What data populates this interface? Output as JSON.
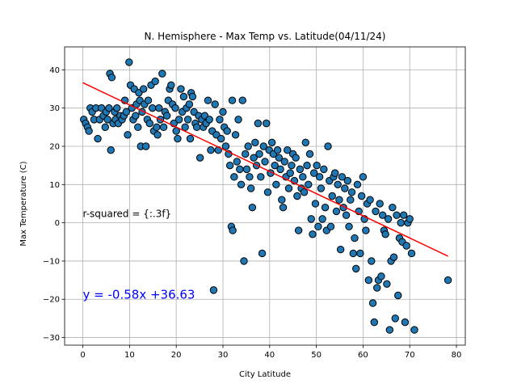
{
  "chart_data": {
    "type": "scatter",
    "title": "N. Hemisphere - Max Temp vs. Latitude(04/11/24)",
    "xlabel": "City Latitude",
    "ylabel": "Max Temperature (C)",
    "xlim": [
      -3.9,
      81.9
    ],
    "ylim": [
      -32,
      46
    ],
    "xticks": [
      0,
      10,
      20,
      30,
      40,
      50,
      60,
      70,
      80
    ],
    "yticks": [
      -30,
      -20,
      -10,
      0,
      10,
      20,
      30,
      40
    ],
    "grid": true,
    "colors": {
      "marker_fill": "#1f77b4",
      "marker_edge": "#000000",
      "regression_line": "#ff0000",
      "equation_text": "#0000ff"
    },
    "regression": {
      "slope": -0.58,
      "intercept": 36.63,
      "x_range": [
        0,
        78.2
      ]
    },
    "annotations": [
      {
        "text": "r-squared = {:.3f}",
        "x": 0.0,
        "y": 1.5,
        "color": "#000000"
      },
      {
        "text": "y = -0.58x +36.63",
        "x": 0.0,
        "y": -19.8,
        "color": "#0000ff"
      }
    ],
    "points": [
      [
        0.2,
        27
      ],
      [
        0.6,
        26
      ],
      [
        1,
        25
      ],
      [
        1.3,
        24
      ],
      [
        1.6,
        30
      ],
      [
        2,
        29
      ],
      [
        2.4,
        27
      ],
      [
        2.8,
        30
      ],
      [
        3.2,
        22
      ],
      [
        3.6,
        27
      ],
      [
        4,
        30
      ],
      [
        4.4,
        28
      ],
      [
        4.8,
        25
      ],
      [
        5,
        29
      ],
      [
        5.3,
        27
      ],
      [
        5.6,
        30
      ],
      [
        5.8,
        39
      ],
      [
        6,
        19
      ],
      [
        6.2,
        38
      ],
      [
        6.5,
        26
      ],
      [
        6.8,
        29
      ],
      [
        7,
        27
      ],
      [
        7.3,
        30
      ],
      [
        7.6,
        26
      ],
      [
        8,
        28
      ],
      [
        8.4,
        27
      ],
      [
        8.8,
        28
      ],
      [
        9,
        32
      ],
      [
        9.3,
        29
      ],
      [
        9.6,
        23
      ],
      [
        9.9,
        42
      ],
      [
        10.2,
        36
      ],
      [
        10.5,
        30
      ],
      [
        10.8,
        27
      ],
      [
        11,
        35
      ],
      [
        11.3,
        28
      ],
      [
        11.5,
        31
      ],
      [
        11.8,
        25
      ],
      [
        12,
        34
      ],
      [
        12.2,
        32
      ],
      [
        12.4,
        20
      ],
      [
        12.7,
        29
      ],
      [
        13,
        35
      ],
      [
        13.2,
        31
      ],
      [
        13.5,
        20
      ],
      [
        13.8,
        27
      ],
      [
        14,
        32
      ],
      [
        14.3,
        26
      ],
      [
        14.6,
        36
      ],
      [
        14.9,
        30
      ],
      [
        15.2,
        24
      ],
      [
        15.5,
        37
      ],
      [
        15.8,
        25
      ],
      [
        16,
        23
      ],
      [
        16.3,
        30
      ],
      [
        16.6,
        27
      ],
      [
        17,
        39
      ],
      [
        17.3,
        25
      ],
      [
        17.6,
        29
      ],
      [
        18,
        28
      ],
      [
        18.3,
        32
      ],
      [
        18.6,
        35
      ],
      [
        18.9,
        36
      ],
      [
        19.2,
        31
      ],
      [
        19.5,
        26
      ],
      [
        19.8,
        30
      ],
      [
        20,
        24
      ],
      [
        20.3,
        22
      ],
      [
        20.6,
        27
      ],
      [
        21,
        35
      ],
      [
        21.3,
        29
      ],
      [
        21.6,
        33
      ],
      [
        21.9,
        25
      ],
      [
        22.2,
        30
      ],
      [
        22.5,
        27
      ],
      [
        22.8,
        31
      ],
      [
        23,
        22
      ],
      [
        23.2,
        34
      ],
      [
        23.5,
        33
      ],
      [
        23.8,
        29
      ],
      [
        24.1,
        26
      ],
      [
        24.4,
        25
      ],
      [
        24.8,
        28
      ],
      [
        25.1,
        17
      ],
      [
        25.5,
        27
      ],
      [
        25.8,
        25
      ],
      [
        26.1,
        28
      ],
      [
        26.4,
        26
      ],
      [
        26.8,
        32
      ],
      [
        27.1,
        27
      ],
      [
        27.4,
        19
      ],
      [
        27.7,
        24
      ],
      [
        28,
        -17.6
      ],
      [
        28.3,
        31
      ],
      [
        28.6,
        23
      ],
      [
        29,
        19
      ],
      [
        29.3,
        27
      ],
      [
        29.6,
        22
      ],
      [
        30,
        29
      ],
      [
        30.3,
        25
      ],
      [
        30.6,
        20
      ],
      [
        30.9,
        24
      ],
      [
        31.2,
        18
      ],
      [
        31.5,
        15
      ],
      [
        31.8,
        -1
      ],
      [
        32,
        32
      ],
      [
        32.1,
        -2
      ],
      [
        32.4,
        12
      ],
      [
        32.7,
        23
      ],
      [
        33,
        16
      ],
      [
        33.3,
        27
      ],
      [
        33.6,
        14
      ],
      [
        33.9,
        10
      ],
      [
        34.2,
        32
      ],
      [
        34.5,
        -10
      ],
      [
        34.8,
        18
      ],
      [
        35.1,
        14
      ],
      [
        35.4,
        20
      ],
      [
        35.7,
        12
      ],
      [
        36,
        9
      ],
      [
        36.3,
        4
      ],
      [
        36.6,
        17
      ],
      [
        36.9,
        21
      ],
      [
        37.2,
        15
      ],
      [
        37.5,
        26
      ],
      [
        37.8,
        18
      ],
      [
        38.1,
        12
      ],
      [
        38.4,
        -8
      ],
      [
        38.7,
        20
      ],
      [
        39,
        16
      ],
      [
        39.3,
        26
      ],
      [
        39.6,
        8
      ],
      [
        39.9,
        19
      ],
      [
        40.2,
        13
      ],
      [
        40.5,
        21
      ],
      [
        40.8,
        18
      ],
      [
        41.1,
        15
      ],
      [
        41.4,
        10
      ],
      [
        41.7,
        19
      ],
      [
        42,
        17
      ],
      [
        42.3,
        14
      ],
      [
        42.6,
        6
      ],
      [
        42.9,
        4
      ],
      [
        43.2,
        16
      ],
      [
        43.5,
        12
      ],
      [
        43.8,
        19
      ],
      [
        44.1,
        9
      ],
      [
        44.4,
        13
      ],
      [
        44.7,
        15
      ],
      [
        45,
        18
      ],
      [
        45.3,
        11
      ],
      [
        45.6,
        17
      ],
      [
        45.9,
        7
      ],
      [
        46.2,
        -2
      ],
      [
        46.5,
        14
      ],
      [
        46.8,
        9
      ],
      [
        47.1,
        12
      ],
      [
        47.4,
        8
      ],
      [
        47.7,
        21
      ],
      [
        48,
        15
      ],
      [
        48.3,
        10
      ],
      [
        48.6,
        18
      ],
      [
        48.9,
        1
      ],
      [
        49.2,
        -3
      ],
      [
        49.5,
        13
      ],
      [
        49.8,
        5
      ],
      [
        50.1,
        15
      ],
      [
        50.4,
        -1
      ],
      [
        50.7,
        12
      ],
      [
        51,
        9
      ],
      [
        51.3,
        1
      ],
      [
        51.6,
        14
      ],
      [
        51.9,
        4
      ],
      [
        52.2,
        -2
      ],
      [
        52.5,
        20
      ],
      [
        52.8,
        11
      ],
      [
        53.1,
        -1
      ],
      [
        53.4,
        7
      ],
      [
        53.7,
        12
      ],
      [
        54,
        13
      ],
      [
        54.3,
        3
      ],
      [
        54.6,
        10
      ],
      [
        54.9,
        6
      ],
      [
        55.2,
        -7
      ],
      [
        55.5,
        12
      ],
      [
        55.8,
        4
      ],
      [
        56.1,
        9
      ],
      [
        56.4,
        2
      ],
      [
        56.7,
        11
      ],
      [
        57,
        -1
      ],
      [
        57.3,
        6
      ],
      [
        57.6,
        8
      ],
      [
        57.9,
        -8
      ],
      [
        58.2,
        -4
      ],
      [
        58.5,
        -12
      ],
      [
        58.8,
        10
      ],
      [
        59.1,
        3
      ],
      [
        59.4,
        -8
      ],
      [
        59.7,
        7
      ],
      [
        60,
        12
      ],
      [
        60.3,
        1
      ],
      [
        60.6,
        -2
      ],
      [
        60.9,
        5
      ],
      [
        61.2,
        -15
      ],
      [
        61.5,
        6
      ],
      [
        61.8,
        -10
      ],
      [
        62.1,
        -21
      ],
      [
        62.4,
        -26
      ],
      [
        62.7,
        3
      ],
      [
        63,
        -17
      ],
      [
        63.3,
        -15
      ],
      [
        63.6,
        5
      ],
      [
        63.9,
        -14
      ],
      [
        64.2,
        2
      ],
      [
        64.5,
        -2
      ],
      [
        64.8,
        -3
      ],
      [
        65.1,
        -16
      ],
      [
        65.4,
        1
      ],
      [
        65.7,
        -28
      ],
      [
        66,
        -10
      ],
      [
        66.3,
        4
      ],
      [
        66.6,
        -9
      ],
      [
        66.9,
        -25
      ],
      [
        67.2,
        2
      ],
      [
        67.5,
        -19
      ],
      [
        67.8,
        -4
      ],
      [
        68.1,
        0
      ],
      [
        68.4,
        -5
      ],
      [
        68.7,
        2
      ],
      [
        69,
        -26
      ],
      [
        69.3,
        -6
      ],
      [
        69.6,
        0
      ],
      [
        70,
        1
      ],
      [
        70.4,
        -8
      ],
      [
        71,
        -28
      ],
      [
        78.2,
        -15
      ]
    ]
  }
}
